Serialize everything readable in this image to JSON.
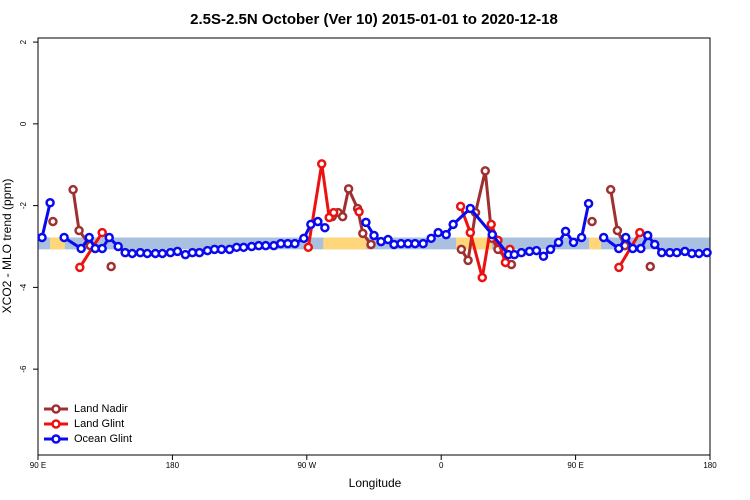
{
  "chart_data": {
    "type": "line",
    "title": "2.5S-2.5N October (Ver 10)   2015-01-01 to 2020-12-18",
    "x_label": "Longitude",
    "y_label": "XCO2 - MLO trend (ppm)",
    "xlim": [
      90,
      540
    ],
    "ylim": [
      -8.1,
      2.1
    ],
    "xticks": [
      {
        "value": 90,
        "label": "90 E"
      },
      180,
      {
        "value": 270,
        "label": "90 W"
      },
      {
        "value": 360,
        "label": "0"
      },
      {
        "value": 450,
        "label": "90 E"
      },
      {
        "value": 540,
        "label": "180"
      }
    ],
    "yticks": [
      2,
      0,
      -2,
      -4,
      -6
    ],
    "legend": "bottom-left",
    "band": {
      "range": [
        -3.07,
        -2.78
      ],
      "color": "#a9c0e0",
      "highlight_color": "#ffd77a",
      "highlights": [
        [
          98,
          108
        ],
        [
          281,
          310
        ],
        [
          370,
          394
        ],
        [
          459,
          467
        ]
      ]
    },
    "series": [
      {
        "name": "Land Nadir",
        "color": "#a03030",
        "x": [
          100,
          null,
          113.5,
          117.5,
          125,
          null,
          139,
          null,
          287,
          291,
          294,
          298,
          304,
          307.5,
          313,
          null,
          373.5,
          378,
          383,
          389.5,
          394,
          398,
          407,
          null,
          461,
          null,
          473.5,
          478,
          483,
          null,
          500
        ],
        "values": [
          -2.39,
          null,
          -1.61,
          -2.61,
          -2.98,
          null,
          -3.49,
          null,
          -2.27,
          -2.17,
          -2.27,
          -1.59,
          -2.07,
          -2.68,
          -2.95,
          null,
          -3.07,
          -3.34,
          -2.17,
          -1.15,
          -2.8,
          -3.07,
          -3.44,
          null,
          -2.39,
          null,
          -1.61,
          -2.61,
          -2.98,
          null,
          -3.49
        ]
      },
      {
        "name": "Land Glint",
        "color": "#ee1111",
        "x": [
          118,
          133,
          null,
          271,
          280,
          285,
          288,
          null,
          305,
          null,
          373,
          379.5,
          387.5,
          393.5,
          398,
          403,
          406,
          null,
          479,
          493
        ],
        "values": [
          -3.51,
          -2.66,
          null,
          -3.02,
          -0.98,
          -2.29,
          -2.17,
          null,
          -2.15,
          null,
          -2.02,
          -2.66,
          -3.76,
          -2.46,
          -2.85,
          -3.39,
          -3.07,
          null,
          -3.51,
          -2.66
        ]
      },
      {
        "name": "Ocean Glint",
        "color": "#0a0aee",
        "x": [
          92.7,
          98.1,
          null,
          107.5,
          118.9,
          124.3,
          128.3,
          133,
          137.7,
          143.7,
          148.4,
          153.1,
          158.5,
          163.2,
          168.6,
          173.3,
          178.7,
          183.4,
          188.7,
          193.4,
          198.1,
          203.5,
          208.2,
          212.9,
          218.3,
          223,
          227.7,
          233.1,
          237.8,
          242.5,
          247.9,
          252.6,
          257.3,
          262,
          268,
          272.7,
          277.4,
          282.1,
          null,
          309.6,
          315,
          319.7,
          324.4,
          328.4,
          333.1,
          337.8,
          342.5,
          347.9,
          353.3,
          358,
          363.3,
          368,
          379.5,
          394.2,
          405,
          409,
          413.7,
          419.1,
          423.8,
          428.5,
          433.2,
          438.6,
          443.3,
          448.6,
          454,
          458.7,
          null,
          468.8,
          478.9,
          483.6,
          488.3,
          493.7,
          498.3,
          503,
          507.7,
          513.1,
          517.8,
          523.2,
          527.9,
          532.6,
          538
        ],
        "values": [
          -2.78,
          -1.93,
          null,
          -2.78,
          -3.05,
          -2.78,
          -3.05,
          -3.05,
          -2.78,
          -3.0,
          -3.15,
          -3.17,
          -3.15,
          -3.17,
          -3.17,
          -3.17,
          -3.15,
          -3.12,
          -3.2,
          -3.15,
          -3.15,
          -3.1,
          -3.07,
          -3.07,
          -3.07,
          -3.02,
          -3.02,
          -3.0,
          -2.98,
          -2.98,
          -2.98,
          -2.93,
          -2.93,
          -2.93,
          -2.8,
          -2.46,
          -2.39,
          -2.54,
          null,
          -2.41,
          -2.73,
          -2.88,
          -2.83,
          -2.95,
          -2.93,
          -2.93,
          -2.93,
          -2.93,
          -2.8,
          -2.66,
          -2.71,
          -2.46,
          -2.07,
          -2.71,
          -3.2,
          -3.2,
          -3.15,
          -3.12,
          -3.1,
          -3.24,
          -3.07,
          -2.9,
          -2.63,
          -2.9,
          -2.78,
          -1.95,
          null,
          -2.78,
          -3.05,
          -2.78,
          -3.05,
          -3.05,
          -2.73,
          -2.95,
          -3.15,
          -3.15,
          -3.15,
          -3.12,
          -3.17,
          -3.17,
          -3.15
        ]
      }
    ]
  }
}
